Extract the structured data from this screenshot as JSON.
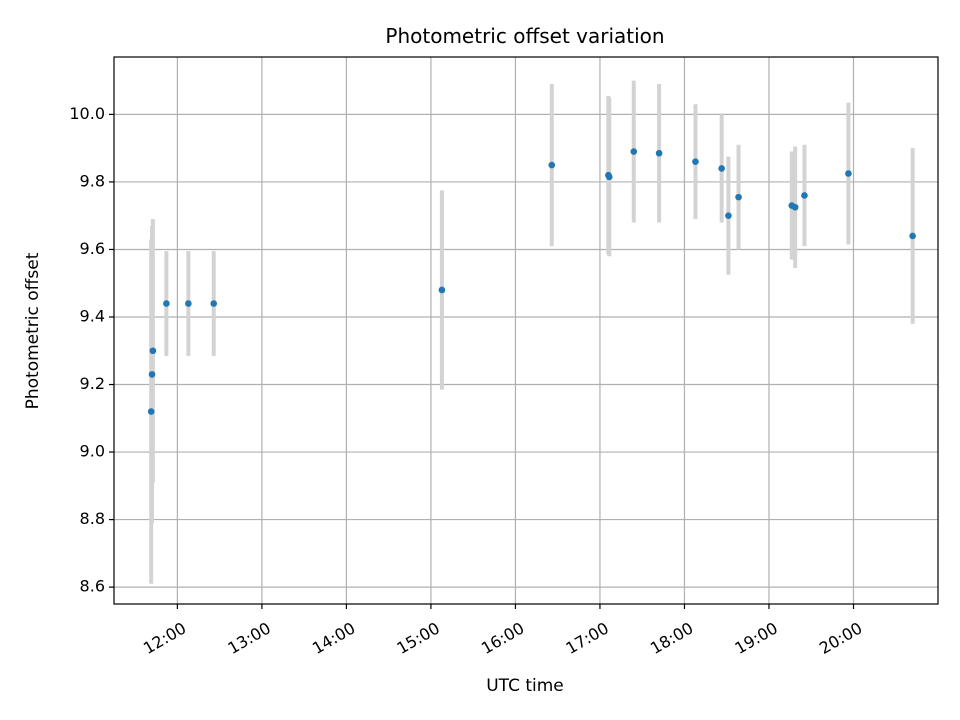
{
  "chart_data": {
    "type": "scatter",
    "title": "Photometric offset variation",
    "xlabel": "UTC time",
    "ylabel": "Photometric offset",
    "x_unit": "hours UTC",
    "xlim": [
      11.25,
      21.0
    ],
    "ylim": [
      8.55,
      10.17
    ],
    "grid": true,
    "x_ticks": [
      {
        "value": 12,
        "label": "12:00"
      },
      {
        "value": 13,
        "label": "13:00"
      },
      {
        "value": 14,
        "label": "14:00"
      },
      {
        "value": 15,
        "label": "15:00"
      },
      {
        "value": 16,
        "label": "16:00"
      },
      {
        "value": 17,
        "label": "17:00"
      },
      {
        "value": 18,
        "label": "18:00"
      },
      {
        "value": 19,
        "label": "19:00"
      },
      {
        "value": 20,
        "label": "20:00"
      }
    ],
    "y_ticks": [
      {
        "value": 8.6,
        "label": "8.6"
      },
      {
        "value": 8.8,
        "label": "8.8"
      },
      {
        "value": 9.0,
        "label": "9.0"
      },
      {
        "value": 9.2,
        "label": "9.2"
      },
      {
        "value": 9.4,
        "label": "9.4"
      },
      {
        "value": 9.6,
        "label": "9.6"
      },
      {
        "value": 9.8,
        "label": "9.8"
      },
      {
        "value": 10.0,
        "label": "10.0"
      }
    ],
    "point_color": "#1f77b4",
    "errorbar_color": "#d3d3d3",
    "points": [
      {
        "x": 11.69,
        "y": 9.12,
        "err": 0.51
      },
      {
        "x": 11.7,
        "y": 9.23,
        "err": 0.44
      },
      {
        "x": 11.71,
        "y": 9.3,
        "err": 0.39
      },
      {
        "x": 11.87,
        "y": 9.44,
        "err": 0.155
      },
      {
        "x": 12.13,
        "y": 9.44,
        "err": 0.155
      },
      {
        "x": 12.43,
        "y": 9.44,
        "err": 0.155
      },
      {
        "x": 15.13,
        "y": 9.48,
        "err": 0.295
      },
      {
        "x": 16.43,
        "y": 9.85,
        "err": 0.24
      },
      {
        "x": 17.1,
        "y": 9.82,
        "err": 0.235
      },
      {
        "x": 17.11,
        "y": 9.815,
        "err": 0.235
      },
      {
        "x": 17.4,
        "y": 9.89,
        "err": 0.21
      },
      {
        "x": 17.7,
        "y": 9.885,
        "err": 0.205
      },
      {
        "x": 18.13,
        "y": 9.86,
        "err": 0.17
      },
      {
        "x": 18.44,
        "y": 9.84,
        "err": 0.16
      },
      {
        "x": 18.52,
        "y": 9.7,
        "err": 0.175
      },
      {
        "x": 18.64,
        "y": 9.755,
        "err": 0.155
      },
      {
        "x": 19.27,
        "y": 9.73,
        "err": 0.16
      },
      {
        "x": 19.31,
        "y": 9.725,
        "err": 0.18
      },
      {
        "x": 19.42,
        "y": 9.76,
        "err": 0.15
      },
      {
        "x": 19.94,
        "y": 9.825,
        "err": 0.21
      },
      {
        "x": 20.7,
        "y": 9.64,
        "err": 0.26
      }
    ]
  }
}
